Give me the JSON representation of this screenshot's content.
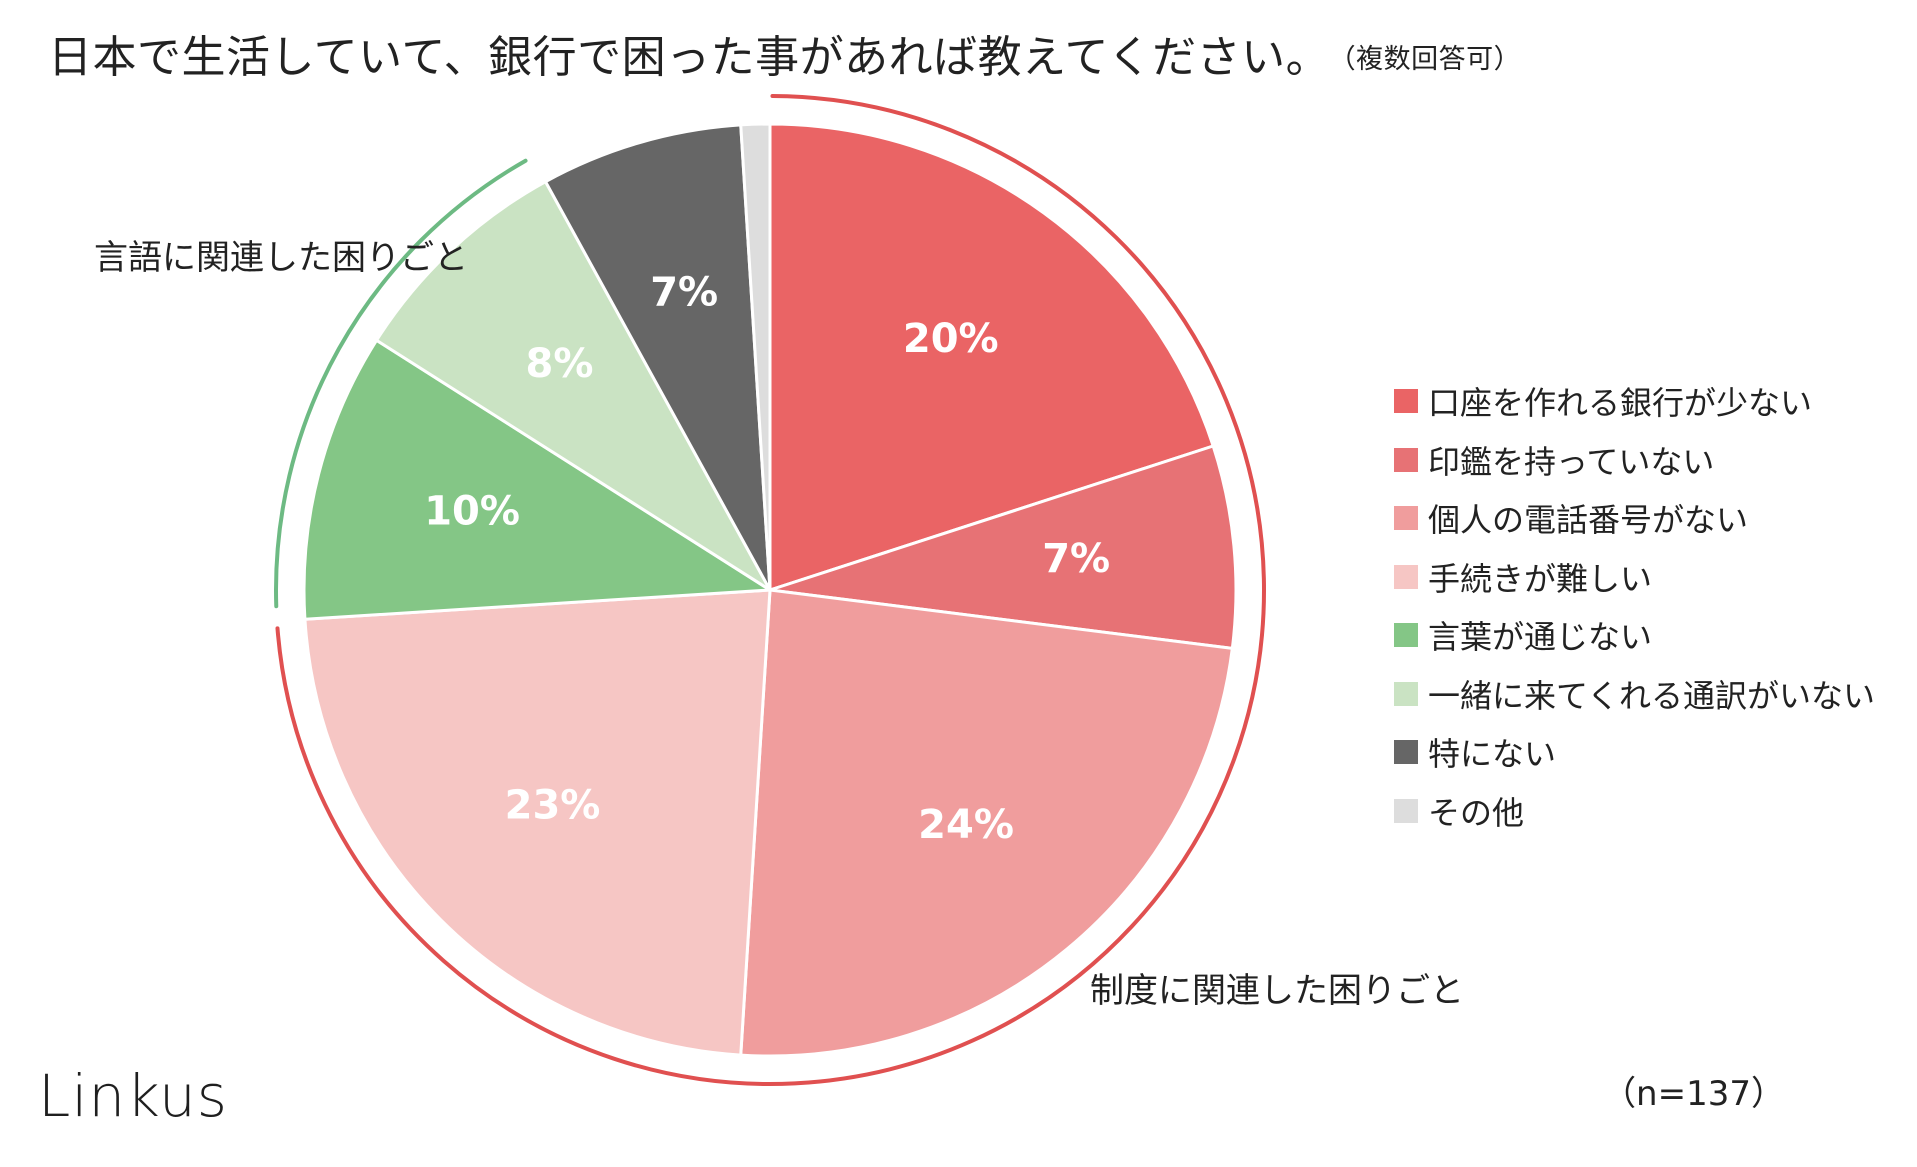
{
  "title": "日本で生活していて、銀行で困った事があれば教えてください。",
  "subtitle": "（複数回答可）",
  "sample_size_label": "（n=137）",
  "logo_text": "Linkus",
  "groups": {
    "language_label": "言語に関連した困りごと",
    "system_label": "制度に関連した困りごと",
    "language_color": "#6dba83",
    "system_color": "#e05050"
  },
  "chart_data": {
    "type": "pie",
    "unit": "%",
    "sample_size": 137,
    "slices": [
      {
        "label": "口座を作れる銀行が少ない",
        "value": 20,
        "display": "20%",
        "color": "#ea6465"
      },
      {
        "label": "印鑑を持っていない",
        "value": 7,
        "display": "7%",
        "color": "#e77275"
      },
      {
        "label": "個人の電話番号がない",
        "value": 24,
        "display": "24%",
        "color": "#f09d9d"
      },
      {
        "label": "手続きが難しい",
        "value": 23,
        "display": "23%",
        "color": "#f6c6c4"
      },
      {
        "label": "言葉が通じない",
        "value": 10,
        "display": "10%",
        "color": "#84c686"
      },
      {
        "label": "一緒に来てくれる通訳がいない",
        "value": 8,
        "display": "8%",
        "color": "#cae3c3"
      },
      {
        "label": "特にない",
        "value": 7,
        "display": "7%",
        "color": "#666666"
      },
      {
        "label": "その他",
        "value": 1,
        "display": "",
        "color": "#dddddd"
      }
    ],
    "legend_position": "right"
  }
}
